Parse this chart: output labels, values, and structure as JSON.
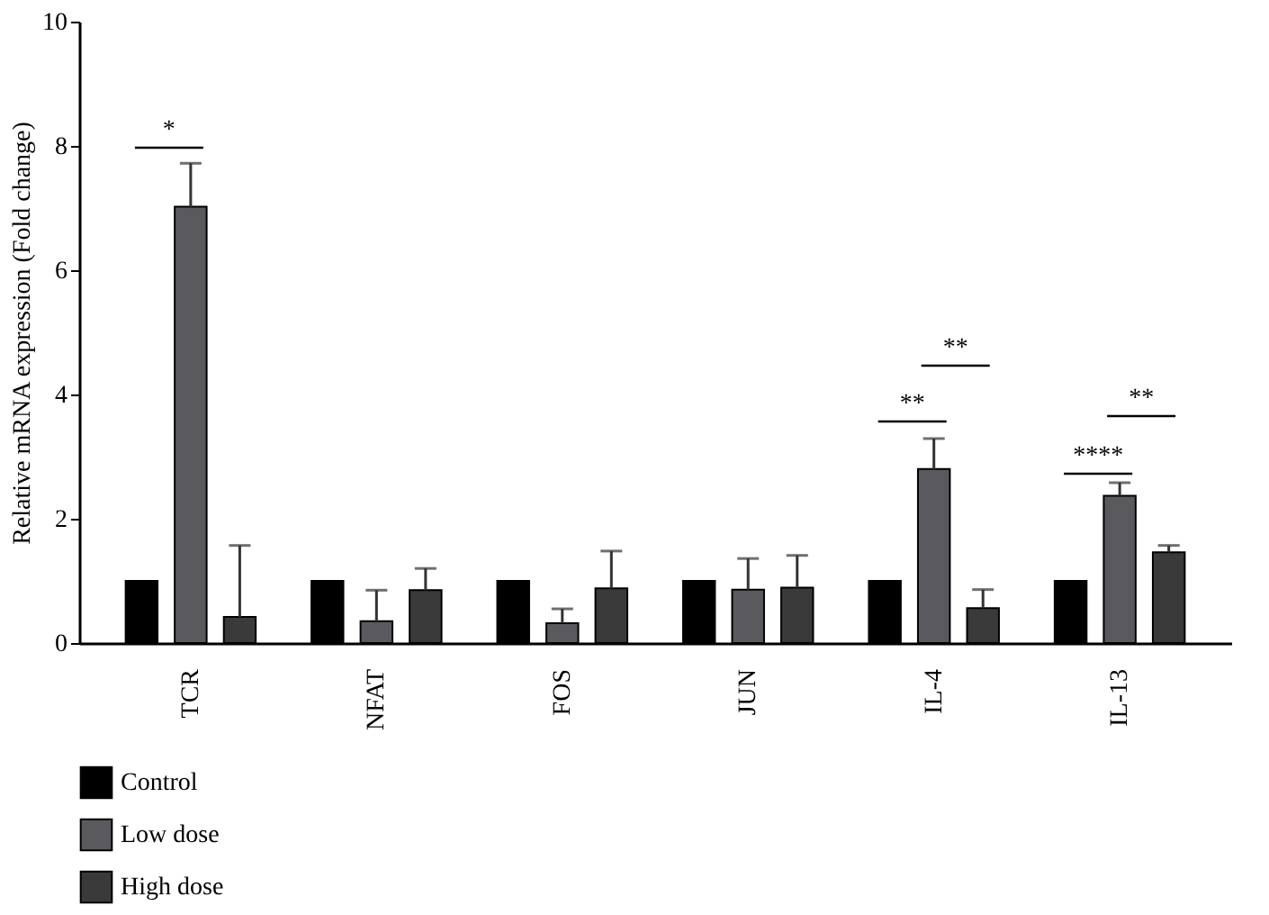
{
  "chart_data": {
    "type": "bar",
    "ylabel": "Relative mRNA expression (Fold change)",
    "categories": [
      "TCR",
      "NFAT",
      "FOS",
      "JUN",
      "IL-4",
      "IL-13"
    ],
    "series": [
      {
        "name": "Control",
        "color": "#000000",
        "values": [
          1,
          1,
          1,
          1,
          1,
          1
        ]
      },
      {
        "name": "Low dose",
        "color": "#5a5a5e",
        "values": [
          7.02,
          0.35,
          0.32,
          0.86,
          2.8,
          2.37
        ],
        "errors": [
          [
            7.02,
            7.72
          ],
          [
            0.35,
            0.85
          ],
          [
            0.32,
            0.55
          ],
          [
            0.86,
            1.36
          ],
          [
            2.8,
            3.29
          ],
          [
            2.37,
            2.58
          ]
        ]
      },
      {
        "name": "High dose",
        "color": "#3a3a3a",
        "values": [
          0.42,
          0.85,
          0.88,
          0.89,
          0.56,
          1.46
        ],
        "errors": [
          [
            0.42,
            1.57
          ],
          [
            0.85,
            1.2
          ],
          [
            0.88,
            1.48
          ],
          [
            0.89,
            1.41
          ],
          [
            0.56,
            0.86
          ],
          [
            1.46,
            1.57
          ]
        ]
      }
    ],
    "ylim": [
      0,
      10
    ],
    "yticks": [
      0,
      2,
      4,
      6,
      8,
      10
    ],
    "grid": false,
    "legend": "bottom left",
    "annotations": [
      "*",
      "**",
      "**",
      "****",
      "**"
    ]
  }
}
